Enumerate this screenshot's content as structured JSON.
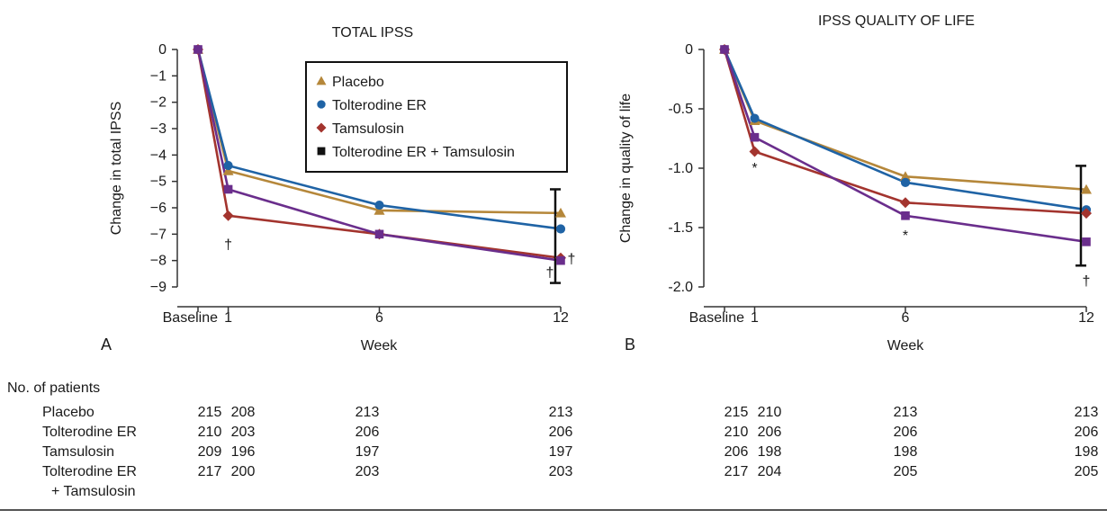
{
  "colors": {
    "placebo": "#B5873A",
    "tolterodine": "#1F63A5",
    "tamsulosin": "#A3342E",
    "combo": "#6A2E8C",
    "legend_combo_marker": "#111111",
    "axis": "#333333"
  },
  "chart_data": [
    {
      "type": "line",
      "panel_label": "A",
      "title": "TOTAL IPSS",
      "xlabel": "Week",
      "ylabel": "Change in total IPSS",
      "x_ticks": [
        {
          "x": 0,
          "label": "Baseline"
        },
        {
          "x": 1,
          "label": "1"
        },
        {
          "x": 6,
          "label": "6"
        },
        {
          "x": 12,
          "label": "12"
        }
      ],
      "xlim": [
        0,
        12
      ],
      "y_ticks": [
        0,
        -1,
        -2,
        -3,
        -4,
        -5,
        -6,
        -7,
        -8,
        -9
      ],
      "y_tick_labels": [
        "0",
        "−1",
        "−2",
        "−3",
        "−4",
        "−5",
        "−6",
        "−7",
        "−8",
        "−9"
      ],
      "ylim": [
        -9,
        0
      ],
      "legend": {
        "position": "top-right",
        "entries": [
          {
            "label": "Placebo",
            "marker": "triangle",
            "color_key": "placebo"
          },
          {
            "label": "Tolterodine ER",
            "marker": "circle",
            "color_key": "tolterodine"
          },
          {
            "label": "Tamsulosin",
            "marker": "diamond",
            "color_key": "tamsulosin"
          },
          {
            "label": "Tolterodine ER + Tamsulosin",
            "marker": "square",
            "color_key": "legend_combo_marker"
          }
        ]
      },
      "series": [
        {
          "name": "Placebo",
          "marker": "triangle",
          "color_key": "placebo",
          "x": [
            0,
            1,
            6,
            12
          ],
          "y": [
            0,
            -4.6,
            -6.1,
            -6.2
          ]
        },
        {
          "name": "Tolterodine ER",
          "marker": "circle",
          "color_key": "tolterodine",
          "x": [
            0,
            1,
            6,
            12
          ],
          "y": [
            0,
            -4.4,
            -5.9,
            -6.8
          ]
        },
        {
          "name": "Tamsulosin",
          "marker": "diamond",
          "color_key": "tamsulosin",
          "x": [
            0,
            1,
            6,
            12
          ],
          "y": [
            0,
            -6.3,
            -7.0,
            -7.9
          ]
        },
        {
          "name": "Tolterodine ER + Tamsulosin",
          "marker": "square",
          "color_key": "combo",
          "x": [
            0,
            1,
            6,
            12
          ],
          "y": [
            0,
            -5.3,
            -7.0,
            -8.0
          ]
        }
      ],
      "error_bars": [
        {
          "x": 12,
          "low": -8.85,
          "high": -5.3
        }
      ],
      "annotations": [
        {
          "text": "†",
          "x": 1,
          "y": -7.4,
          "offset": 0
        },
        {
          "text": "†",
          "x": 12,
          "y": -8.45,
          "offset": -1
        },
        {
          "text": "†",
          "x": 12,
          "y": -7.95,
          "offset": 1
        }
      ]
    },
    {
      "type": "line",
      "panel_label": "B",
      "title": "IPSS QUALITY OF LIFE",
      "xlabel": "Week",
      "ylabel": "Change in quality of life",
      "x_ticks": [
        {
          "x": 0,
          "label": "Baseline"
        },
        {
          "x": 1,
          "label": "1"
        },
        {
          "x": 6,
          "label": "6"
        },
        {
          "x": 12,
          "label": "12"
        }
      ],
      "xlim": [
        0,
        12
      ],
      "y_ticks": [
        0,
        -0.5,
        -1.0,
        -1.5,
        -2.0
      ],
      "y_tick_labels": [
        "0",
        "-0.5",
        "-1.0",
        "-1.5",
        "-2.0"
      ],
      "ylim": [
        -2.0,
        0
      ],
      "series": [
        {
          "name": "Placebo",
          "marker": "triangle",
          "color_key": "placebo",
          "x": [
            0,
            1,
            6,
            12
          ],
          "y": [
            0,
            -0.6,
            -1.07,
            -1.18
          ]
        },
        {
          "name": "Tolterodine ER",
          "marker": "circle",
          "color_key": "tolterodine",
          "x": [
            0,
            1,
            6,
            12
          ],
          "y": [
            0,
            -0.58,
            -1.12,
            -1.35
          ]
        },
        {
          "name": "Tamsulosin",
          "marker": "diamond",
          "color_key": "tamsulosin",
          "x": [
            0,
            1,
            6,
            12
          ],
          "y": [
            0,
            -0.86,
            -1.29,
            -1.38
          ]
        },
        {
          "name": "Tolterodine ER + Tamsulosin",
          "marker": "square",
          "color_key": "combo",
          "x": [
            0,
            1,
            6,
            12
          ],
          "y": [
            0,
            -0.74,
            -1.4,
            -1.62
          ]
        }
      ],
      "error_bars": [
        {
          "x": 12,
          "low": -1.82,
          "high": -0.98
        }
      ],
      "annotations": [
        {
          "text": "*",
          "x": 1,
          "y": -1.0,
          "offset": 0
        },
        {
          "text": "*",
          "x": 6,
          "y": -1.57,
          "offset": 0
        },
        {
          "text": "†",
          "x": 12,
          "y": -1.95,
          "offset": 0
        }
      ]
    }
  ],
  "patients_table": {
    "header": "No. of patients",
    "rows": [
      {
        "label": [
          "Placebo"
        ],
        "a": [
          "215",
          "208",
          "213",
          "213"
        ],
        "b": [
          "215",
          "210",
          "213",
          "213"
        ]
      },
      {
        "label": [
          "Tolterodine ER"
        ],
        "a": [
          "210",
          "203",
          "206",
          "206"
        ],
        "b": [
          "210",
          "206",
          "206",
          "206"
        ]
      },
      {
        "label": [
          "Tamsulosin"
        ],
        "a": [
          "209",
          "196",
          "197",
          "197"
        ],
        "b": [
          "206",
          "198",
          "198",
          "198"
        ]
      },
      {
        "label": [
          "Tolterodine ER",
          "+ Tamsulosin"
        ],
        "a": [
          "217",
          "200",
          "203",
          "203"
        ],
        "b": [
          "217",
          "204",
          "205",
          "205"
        ]
      }
    ]
  }
}
